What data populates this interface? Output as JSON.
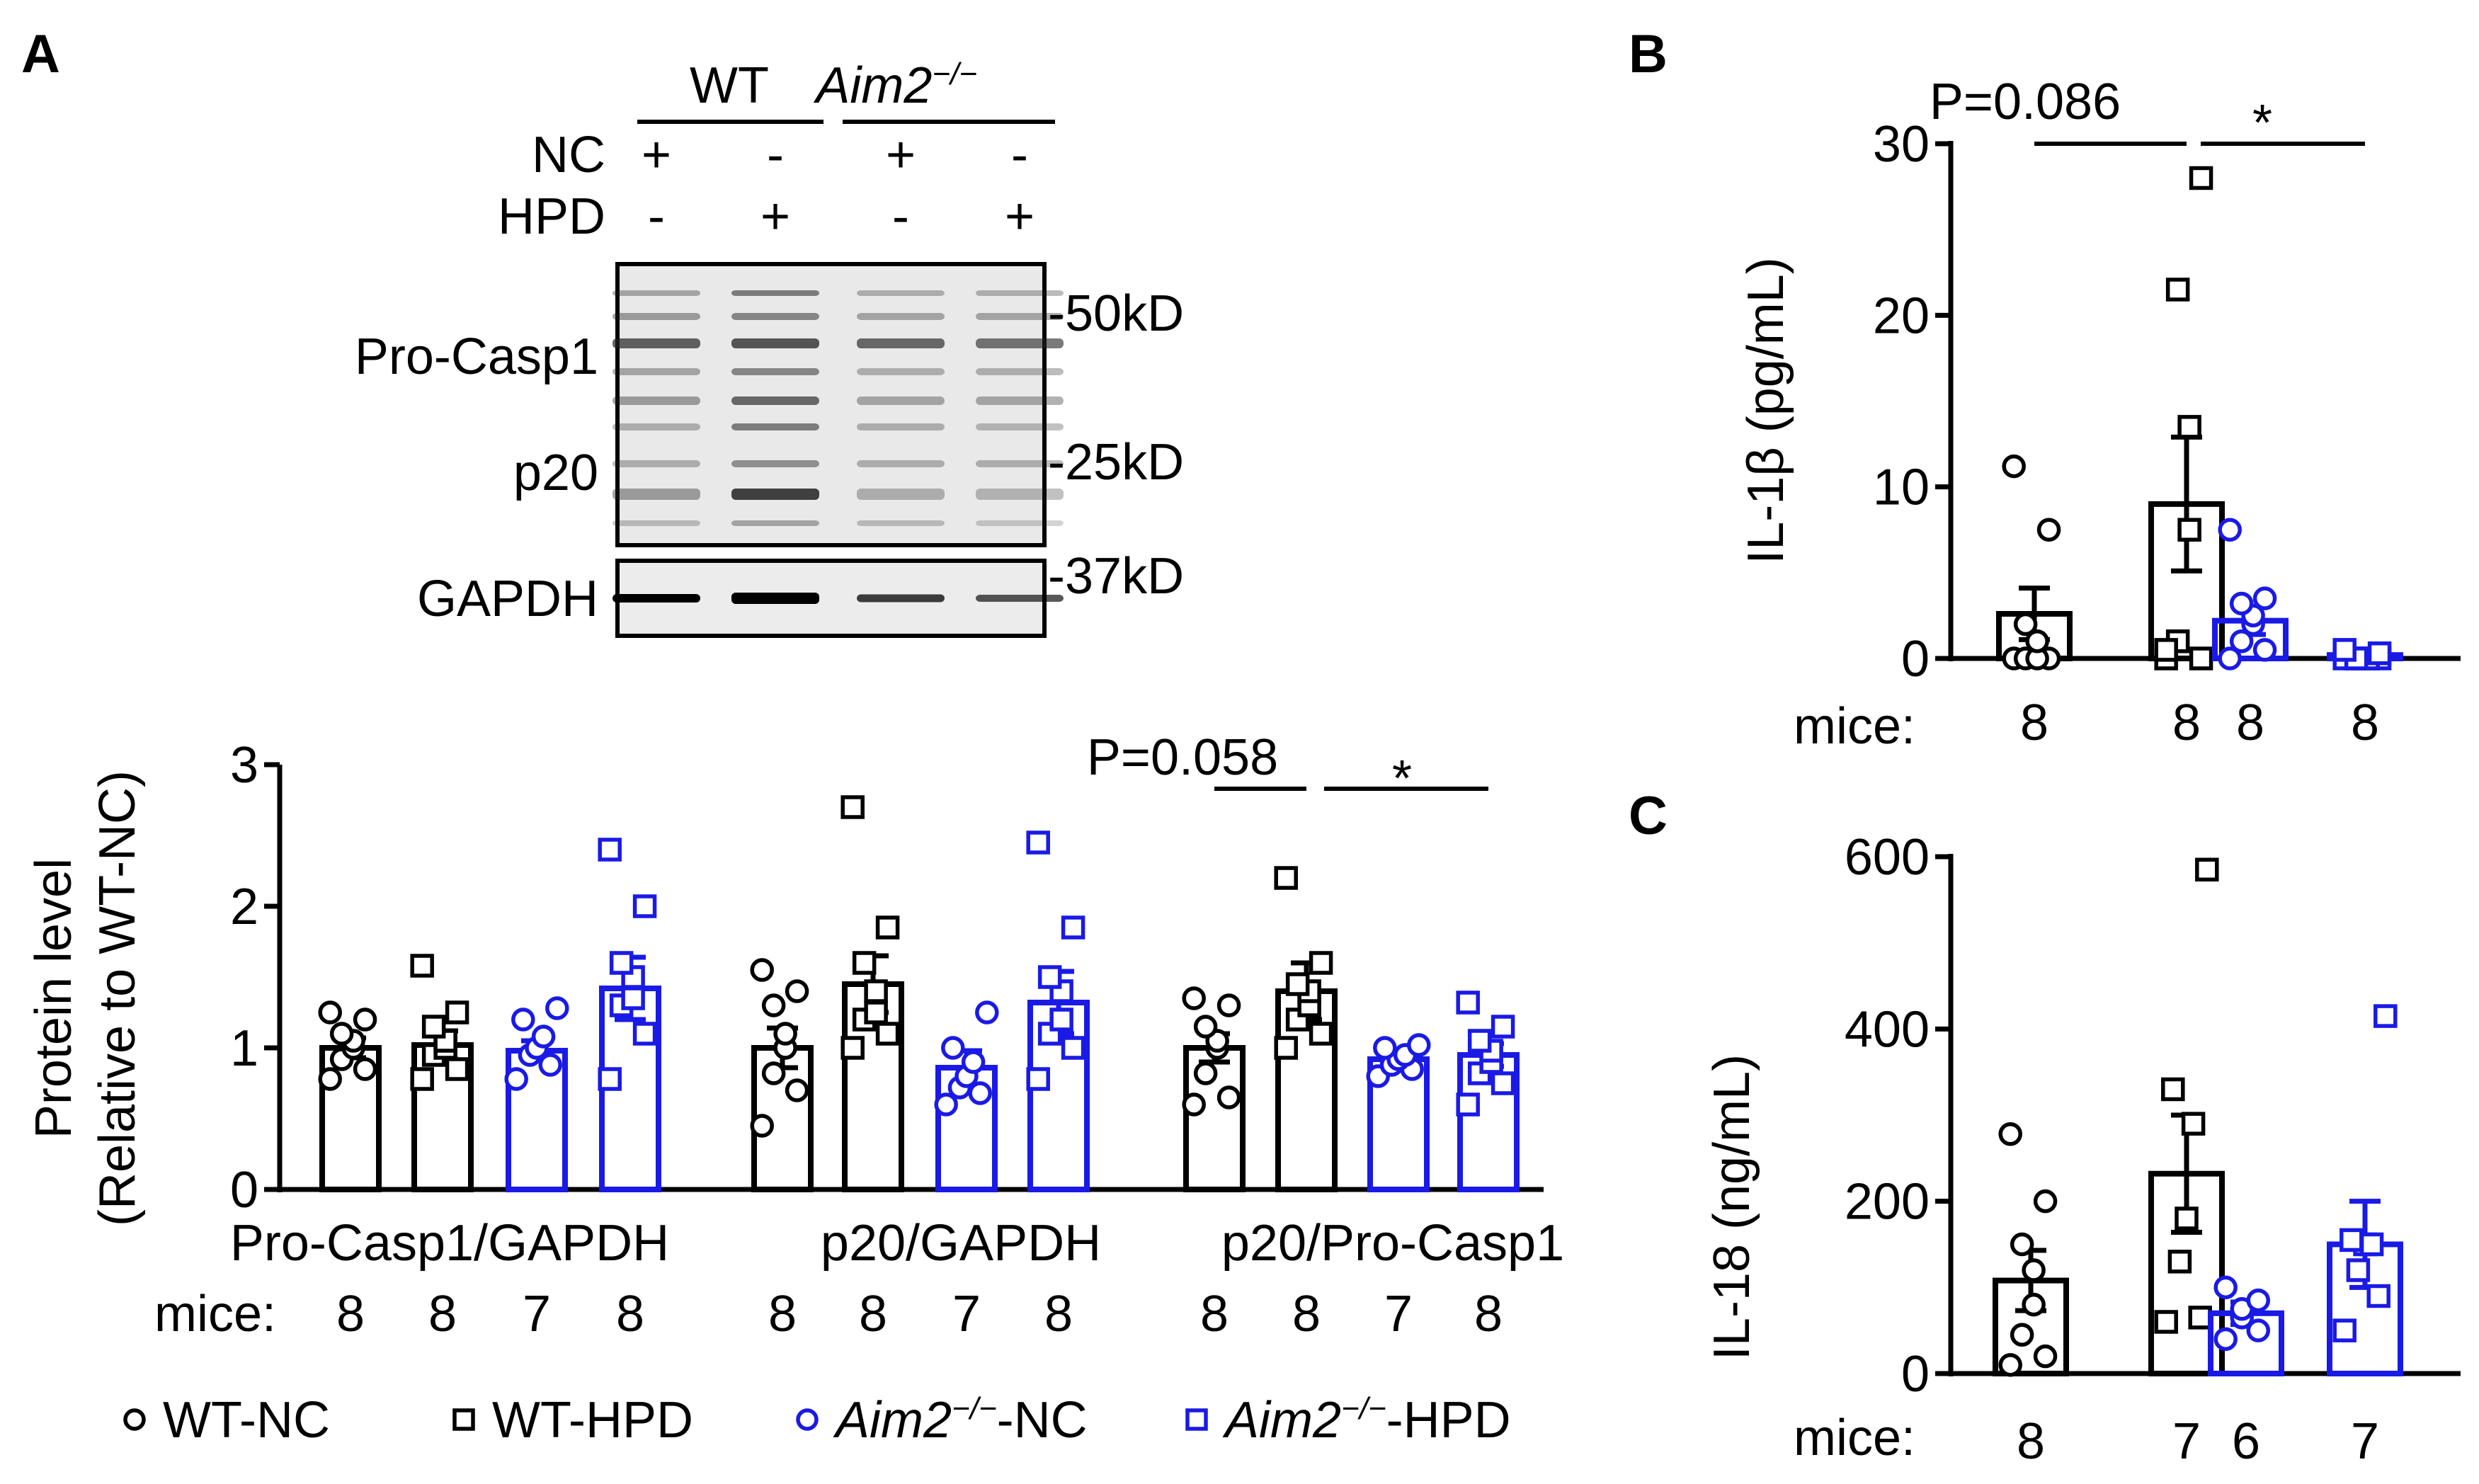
{
  "colors": {
    "wt": "#000000",
    "ko": "#1a1ae6",
    "bg": "#ffffff"
  },
  "panels": {
    "a": "A",
    "b": "B",
    "c": "C"
  },
  "blot": {
    "header_wt": "WT",
    "header_ko": "Aim2",
    "ko_superscript": "−/−",
    "row_nc": "NC",
    "row_hpd": "HPD",
    "nc_signs": [
      "+",
      "-",
      "+",
      "-"
    ],
    "hpd_signs": [
      "-",
      "+",
      "-",
      "+"
    ],
    "band_labels": [
      "Pro-Casp1",
      "p20",
      "GAPDH"
    ],
    "markers": [
      "-50kD",
      "-25kD",
      "-37kD"
    ]
  },
  "legend": {
    "items": [
      {
        "prefix": "",
        "italic": "",
        "sup": "",
        "suffix": "WT-NC",
        "marker": "circle",
        "group": "wt"
      },
      {
        "prefix": "",
        "italic": "",
        "sup": "",
        "suffix": "WT-HPD",
        "marker": "square",
        "group": "wt"
      },
      {
        "prefix": "",
        "italic": "Aim2",
        "sup": "−/−",
        "suffix": "-NC",
        "marker": "circle",
        "group": "ko"
      },
      {
        "prefix": "",
        "italic": "Aim2",
        "sup": "−/−",
        "suffix": "-HPD",
        "marker": "square",
        "group": "ko"
      }
    ]
  },
  "chart_data": [
    {
      "id": "panel-a",
      "type": "bar",
      "title": "",
      "ylabel_line1": "Protein level",
      "ylabel_line2": "(Relative to WT-NC)",
      "ylim": [
        0,
        3
      ],
      "yticks": [
        "0",
        "1",
        "2",
        "3"
      ],
      "groups": [
        "Pro-Casp1/GAPDH",
        "p20/GAPDH",
        "p20/Pro-Casp1"
      ],
      "series_names": [
        "WT-NC",
        "WT-HPD",
        "Aim2−/−-NC",
        "Aim2−/−-HPD"
      ],
      "bars": [
        {
          "group": 0,
          "series": 0,
          "mean": 1.0,
          "sem": 0.07,
          "points": [
            0.78,
            0.85,
            0.92,
            1.0,
            1.05,
            1.1,
            1.2,
            1.25
          ]
        },
        {
          "group": 0,
          "series": 1,
          "mean": 1.02,
          "sem": 0.1,
          "points": [
            0.78,
            0.85,
            0.95,
            1.0,
            1.05,
            1.15,
            1.25,
            1.58
          ]
        },
        {
          "group": 0,
          "series": 2,
          "mean": 0.98,
          "sem": 0.07,
          "points": [
            0.78,
            0.88,
            0.95,
            1.0,
            1.08,
            1.2,
            1.28
          ]
        },
        {
          "group": 0,
          "series": 3,
          "mean": 1.42,
          "sem": 0.22,
          "points": [
            0.78,
            1.1,
            1.3,
            1.35,
            1.5,
            1.6,
            2.0,
            2.4
          ]
        },
        {
          "group": 1,
          "series": 0,
          "mean": 1.0,
          "sem": 0.14,
          "points": [
            0.45,
            0.7,
            0.82,
            1.0,
            1.1,
            1.3,
            1.4,
            1.55
          ]
        },
        {
          "group": 1,
          "series": 1,
          "mean": 1.45,
          "sem": 0.2,
          "points": [
            1.0,
            1.1,
            1.2,
            1.25,
            1.4,
            1.6,
            1.85,
            2.7
          ]
        },
        {
          "group": 1,
          "series": 2,
          "mean": 0.86,
          "sem": 0.12,
          "points": [
            0.6,
            0.68,
            0.72,
            0.8,
            0.9,
            1.0,
            1.25
          ]
        },
        {
          "group": 1,
          "series": 3,
          "mean": 1.32,
          "sem": 0.22,
          "points": [
            0.78,
            1.0,
            1.1,
            1.2,
            1.4,
            1.5,
            1.85,
            2.45
          ]
        },
        {
          "group": 2,
          "series": 0,
          "mean": 1.0,
          "sem": 0.1,
          "points": [
            0.6,
            0.65,
            0.82,
            1.0,
            1.05,
            1.15,
            1.3,
            1.35
          ]
        },
        {
          "group": 2,
          "series": 1,
          "mean": 1.4,
          "sem": 0.2,
          "points": [
            1.0,
            1.1,
            1.2,
            1.3,
            1.4,
            1.45,
            1.6,
            2.2
          ]
        },
        {
          "group": 2,
          "series": 2,
          "mean": 0.92,
          "sem": 0.06,
          "points": [
            0.8,
            0.85,
            0.88,
            0.92,
            0.95,
            1.0,
            1.02
          ]
        },
        {
          "group": 2,
          "series": 3,
          "mean": 0.95,
          "sem": 0.08,
          "points": [
            0.6,
            0.75,
            0.82,
            0.9,
            0.98,
            1.05,
            1.15,
            1.32
          ]
        }
      ],
      "annotations": [
        {
          "text": "P=0.058",
          "from": [
            2,
            0
          ],
          "to": [
            2,
            1
          ]
        },
        {
          "text": "*",
          "from": [
            2,
            1
          ],
          "to": [
            2,
            3
          ]
        }
      ],
      "mice_label": "mice:",
      "mice": [
        "8",
        "8",
        "7",
        "8",
        "8",
        "8",
        "7",
        "8",
        "8",
        "8",
        "7",
        "8"
      ]
    },
    {
      "id": "panel-b",
      "type": "bar",
      "title": "",
      "ylabel": "IL-1β (pg/mL)",
      "ylim": [
        0,
        30
      ],
      "yticks": [
        "0",
        "10",
        "20",
        "30"
      ],
      "categories": [
        "WT-NC",
        "WT-HPD",
        "Aim2−/−-NC",
        "Aim2−/−-HPD"
      ],
      "bars": [
        {
          "series": 0,
          "mean": 2.6,
          "sem": 1.5,
          "points": [
            0,
            0,
            0,
            0,
            1.0,
            2.0,
            7.5,
            11.2
          ]
        },
        {
          "series": 1,
          "mean": 9.0,
          "sem": 3.9,
          "points": [
            0,
            0,
            1.0,
            7.5,
            13.5,
            21.5,
            28.0,
            0.5
          ]
        },
        {
          "series": 2,
          "mean": 2.2,
          "sem": 0.8,
          "points": [
            0,
            0.5,
            1.0,
            2.0,
            2.5,
            3.2,
            3.5,
            7.5
          ]
        },
        {
          "series": 3,
          "mean": 0.2,
          "sem": 0.1,
          "points": [
            0,
            0,
            0,
            0,
            0,
            0,
            0.3,
            0.5
          ]
        }
      ],
      "annotations": [
        {
          "text": "P=0.086",
          "from": 0,
          "to": 1
        },
        {
          "text": "*",
          "from": 1,
          "to": 3
        }
      ],
      "mice_label": "mice:",
      "mice": [
        "8",
        "8",
        "8",
        "8"
      ]
    },
    {
      "id": "panel-c",
      "type": "bar",
      "title": "",
      "ylabel": "IL-18 (ng/mL)",
      "ylim": [
        0,
        600
      ],
      "yticks": [
        "0",
        "200",
        "400",
        "600"
      ],
      "categories": [
        "WT-NC",
        "WT-HPD",
        "Aim2−/−-NC",
        "Aim2−/−-HPD"
      ],
      "bars": [
        {
          "series": 0,
          "mean": 108,
          "sem": 35,
          "points": [
            10,
            20,
            45,
            80,
            120,
            150,
            200,
            278
          ]
        },
        {
          "series": 1,
          "mean": 232,
          "sem": 68,
          "points": [
            60,
            65,
            130,
            180,
            290,
            330,
            585
          ]
        },
        {
          "series": 2,
          "mean": 70,
          "sem": 13,
          "points": [
            40,
            50,
            65,
            75,
            85,
            100
          ]
        },
        {
          "series": 3,
          "mean": 150,
          "sem": 50,
          "points": [
            50,
            90,
            120,
            150,
            150,
            155,
            415
          ]
        }
      ],
      "mice_label": "mice:",
      "mice": [
        "8",
        "7",
        "6",
        "7"
      ]
    }
  ]
}
